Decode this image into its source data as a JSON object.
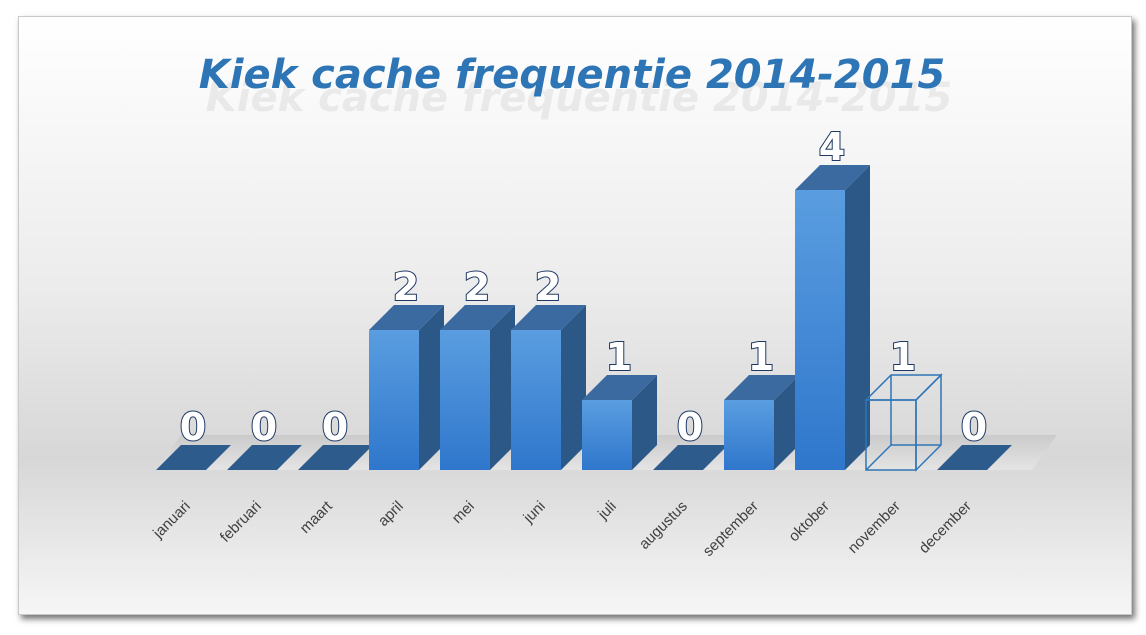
{
  "chart_data": {
    "type": "bar",
    "title": "Kiek cache frequentie 2014-2015",
    "categories": [
      "januari",
      "februari",
      "maart",
      "april",
      "mei",
      "juni",
      "juli",
      "augustus",
      "september",
      "oktober",
      "november",
      "december"
    ],
    "values": [
      0,
      0,
      0,
      2,
      2,
      2,
      1,
      0,
      1,
      4,
      1,
      0
    ],
    "highlighted_as_outline": [
      "november"
    ],
    "ylim": [
      0,
      4
    ],
    "grid": false,
    "legend": "none",
    "data_labels": true,
    "colors": {
      "bar_front": "#3d85d8",
      "bar_side": "#2c5887",
      "bar_top": "#3a6aa0",
      "title": "#2e75b6",
      "label_outline": "#1f3864"
    }
  }
}
